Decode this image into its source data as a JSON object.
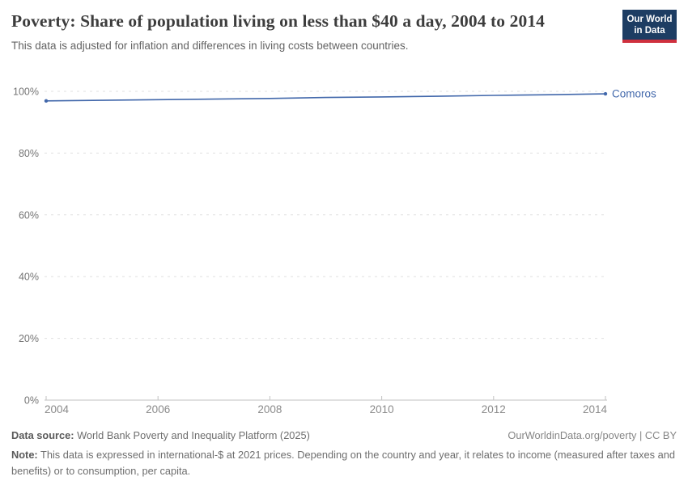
{
  "header": {
    "title": "Poverty: Share of population living on less than $40 a day, 2004 to 2014",
    "subtitle": "This data is adjusted for inflation and differences in living costs between countries.",
    "logo": {
      "line1": "Our World",
      "line2": "in Data"
    }
  },
  "chart_data": {
    "type": "line",
    "title": "Poverty: Share of population living on less than $40 a day, 2004 to 2014",
    "x": [
      2004,
      2005,
      2006,
      2007,
      2008,
      2009,
      2010,
      2011,
      2012,
      2013,
      2014
    ],
    "series": [
      {
        "name": "Comoros",
        "color": "#4268ab",
        "values": [
          96.9,
          97.1,
          97.3,
          97.5,
          97.7,
          98.0,
          98.2,
          98.4,
          98.7,
          98.9,
          99.2
        ]
      }
    ],
    "xlabel": "",
    "ylabel": "",
    "ylim": [
      0,
      100
    ],
    "yticks": [
      0,
      20,
      40,
      60,
      80,
      100
    ],
    "ytick_suffix": "%",
    "xticks": [
      2004,
      2006,
      2008,
      2010,
      2012,
      2014
    ],
    "grid": "horizontal-dashed",
    "legend": "end-of-line-label",
    "colors": {
      "gridline": "#e0e0e0",
      "axis": "#c2c2c2",
      "ytick_label": "#757575",
      "xtick_label": "#8b8b8b"
    }
  },
  "footer": {
    "datasource_label": "Data source:",
    "datasource_value": " World Bank Poverty and Inequality Platform (2025)",
    "link": "OurWorldinData.org/poverty | CC BY",
    "note_label": "Note:",
    "note_value": " This data is expressed in international-$ at 2021 prices. Depending on the country and year, it relates to income (measured after taxes and benefits) or to consumption, per capita."
  }
}
